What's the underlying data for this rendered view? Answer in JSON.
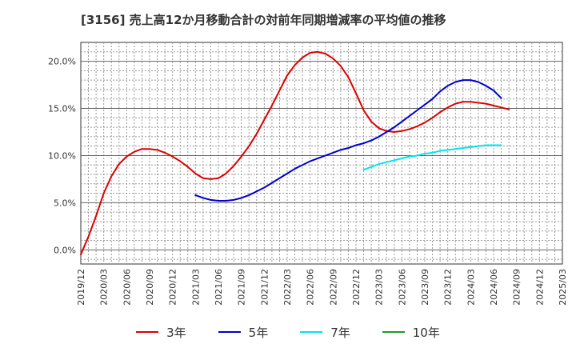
{
  "chart_data": {
    "type": "line",
    "title": "[3156]  売上高12か月移動合計の対前年同期増減率の平均値の推移",
    "xlabel": "",
    "ylabel": "",
    "ylim": [
      -1.5,
      22.0
    ],
    "yticks": [
      0,
      5,
      10,
      15,
      20
    ],
    "ytick_labels": [
      "0.0%",
      "5.0%",
      "10.0%",
      "15.0%",
      "20.0%"
    ],
    "x_tick_labels": [
      "2019/12",
      "2020/03",
      "2020/06",
      "2020/09",
      "2020/12",
      "2021/03",
      "2021/06",
      "2021/09",
      "2021/12",
      "2022/03",
      "2022/06",
      "2022/09",
      "2022/12",
      "2023/03",
      "2023/06",
      "2023/09",
      "2023/12",
      "2024/03",
      "2024/06",
      "2024/09",
      "2024/12",
      "2025/03"
    ],
    "grid": true,
    "legend_position": "bottom",
    "series": [
      {
        "name": "3年",
        "color": "#dd0000",
        "values": [
          -0.5,
          1.4,
          3.6,
          6.0,
          7.8,
          9.1,
          9.9,
          10.4,
          10.7,
          10.7,
          10.6,
          10.3,
          9.9,
          9.4,
          8.8,
          8.1,
          7.6,
          7.5,
          7.6,
          8.1,
          8.9,
          9.9,
          11.0,
          12.3,
          13.8,
          15.3,
          16.9,
          18.5,
          19.6,
          20.4,
          20.9,
          21.0,
          20.8,
          20.3,
          19.5,
          18.3,
          16.6,
          14.8,
          13.6,
          12.9,
          12.6,
          12.5,
          12.6,
          12.8,
          13.1,
          13.5,
          14.0,
          14.6,
          15.1,
          15.5,
          15.7,
          15.7,
          15.6,
          15.5,
          15.3,
          15.1,
          14.9
        ]
      },
      {
        "name": "5年",
        "color": "#0000cc",
        "values": [
          null,
          null,
          null,
          null,
          null,
          null,
          null,
          null,
          null,
          null,
          null,
          null,
          null,
          null,
          null,
          5.8,
          5.5,
          5.3,
          5.2,
          5.2,
          5.3,
          5.5,
          5.8,
          6.2,
          6.6,
          7.1,
          7.6,
          8.1,
          8.6,
          9.0,
          9.4,
          9.7,
          10.0,
          10.3,
          10.6,
          10.8,
          11.1,
          11.3,
          11.6,
          12.0,
          12.5,
          13.0,
          13.6,
          14.2,
          14.8,
          15.4,
          16.0,
          16.8,
          17.4,
          17.8,
          18.0,
          18.0,
          17.8,
          17.4,
          16.9,
          16.1,
          null
        ]
      },
      {
        "name": "7年",
        "color": "#00e5ee",
        "values": [
          null,
          null,
          null,
          null,
          null,
          null,
          null,
          null,
          null,
          null,
          null,
          null,
          null,
          null,
          null,
          null,
          null,
          null,
          null,
          null,
          null,
          null,
          null,
          null,
          null,
          null,
          null,
          null,
          null,
          null,
          null,
          null,
          null,
          null,
          null,
          null,
          null,
          8.5,
          8.8,
          9.1,
          9.3,
          9.5,
          9.7,
          9.9,
          10.0,
          10.2,
          10.3,
          10.5,
          10.6,
          10.7,
          10.8,
          10.9,
          11.0,
          11.1,
          11.1,
          11.1,
          null
        ]
      },
      {
        "name": "10年",
        "color": "#229922",
        "values": []
      }
    ]
  }
}
